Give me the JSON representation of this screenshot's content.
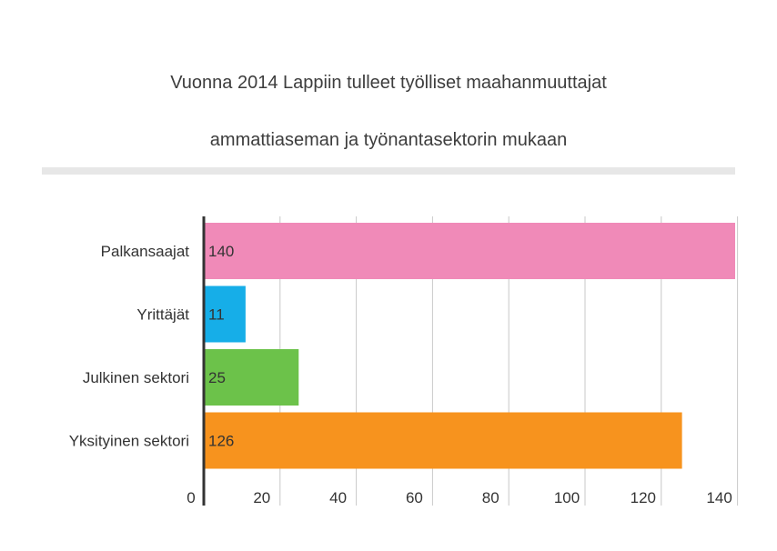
{
  "chart_data": {
    "type": "bar",
    "orientation": "horizontal",
    "title_lines": [
      "Vuonna 2014 Lappiin tulleet työlliset maahanmuuttajat",
      "ammattiaseman ja työnantasektorin mukaan"
    ],
    "categories": [
      "Palkansaajat",
      "Yrittäjät",
      "Julkinen sektori",
      "Yksityinen sektori"
    ],
    "values": [
      140,
      11,
      25,
      126
    ],
    "value_labels": [
      "140",
      "11",
      "25",
      "126"
    ],
    "colors": [
      "#f08ab8",
      "#16aee8",
      "#6cc24a",
      "#f7931e"
    ],
    "x_ticks": [
      "0",
      "20",
      "40",
      "60",
      "80",
      "100",
      "120",
      "140"
    ],
    "xlim": [
      0,
      140
    ],
    "grid": true,
    "legend": "none"
  }
}
